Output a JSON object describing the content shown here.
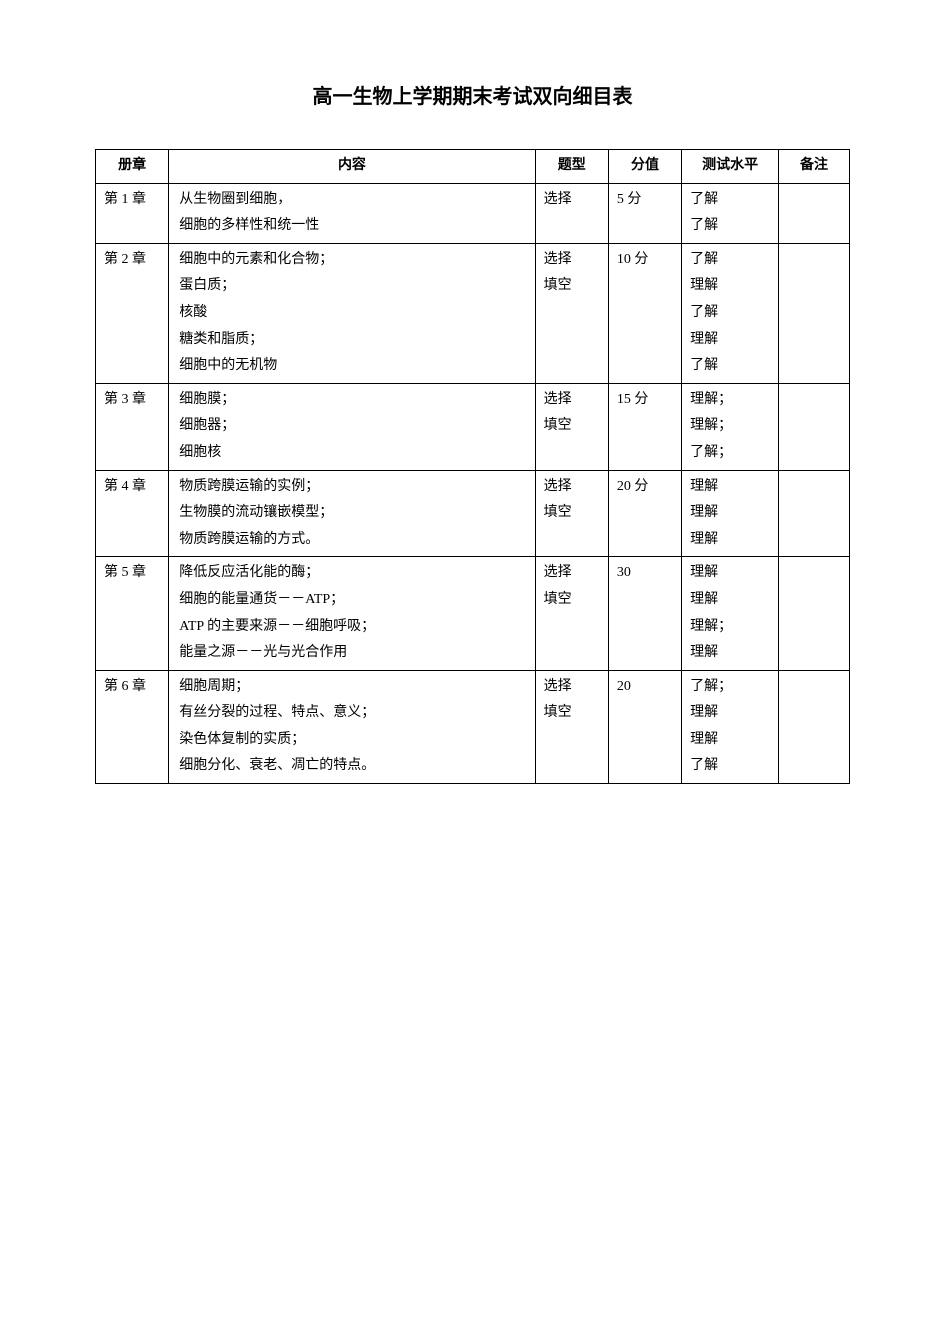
{
  "title": "高一生物上学期期末考试双向细目表",
  "headers": {
    "chapter": "册章",
    "content": "内容",
    "type": "题型",
    "score": "分值",
    "level": "测试水平",
    "remark": "备注"
  },
  "rows": [
    {
      "chapter": "第 1 章",
      "content_lines": [
        "从生物圈到细胞，",
        "细胞的多样性和统一性"
      ],
      "type_lines": [
        "选择"
      ],
      "score": "5 分",
      "level_lines": [
        "了解",
        "了解"
      ],
      "remark": ""
    },
    {
      "chapter": "第 2 章",
      "content_lines": [
        "细胞中的元素和化合物；",
        "蛋白质；",
        "核酸",
        "糖类和脂质；",
        "细胞中的无机物"
      ],
      "type_lines": [
        "选择",
        "填空"
      ],
      "score": "10 分",
      "level_lines": [
        "了解",
        "理解",
        "了解",
        "理解",
        "了解"
      ],
      "remark": ""
    },
    {
      "chapter": "第 3 章",
      "content_lines": [
        "细胞膜；",
        "细胞器；",
        "细胞核"
      ],
      "type_lines": [
        "选择",
        "填空"
      ],
      "score": "15 分",
      "level_lines": [
        "理解；",
        "理解；",
        "了解；"
      ],
      "remark": ""
    },
    {
      "chapter": "第 4 章",
      "content_lines": [
        "物质跨膜运输的实例；",
        "生物膜的流动镶嵌模型；",
        "物质跨膜运输的方式。"
      ],
      "type_lines": [
        "选择",
        "填空"
      ],
      "score": "20 分",
      "level_lines": [
        "理解",
        "理解",
        "理解"
      ],
      "remark": ""
    },
    {
      "chapter": "第 5 章",
      "content_lines": [
        "降低反应活化能的酶；",
        "细胞的能量通货－－ATP；",
        "ATP 的主要来源－－细胞呼吸；",
        "能量之源－－光与光合作用"
      ],
      "type_lines": [
        "选择",
        "填空"
      ],
      "score": "30",
      "level_lines": [
        "理解",
        "理解",
        "理解；",
        "理解"
      ],
      "remark": ""
    },
    {
      "chapter": "第 6 章",
      "content_lines": [
        "细胞周期；",
        "有丝分裂的过程、特点、意义；",
        "染色体复制的实质；",
        "细胞分化、衰老、凋亡的特点。"
      ],
      "type_lines": [
        "选择",
        "填空"
      ],
      "score": "20",
      "level_lines": [
        "了解；",
        "理解",
        "理解",
        "了解"
      ],
      "remark": ""
    }
  ],
  "colors": {
    "background": "#ffffff",
    "border": "#000000",
    "text": "#000000"
  },
  "typography": {
    "title_fontsize": 20,
    "body_fontsize": 14,
    "font_family": "SimSun"
  }
}
